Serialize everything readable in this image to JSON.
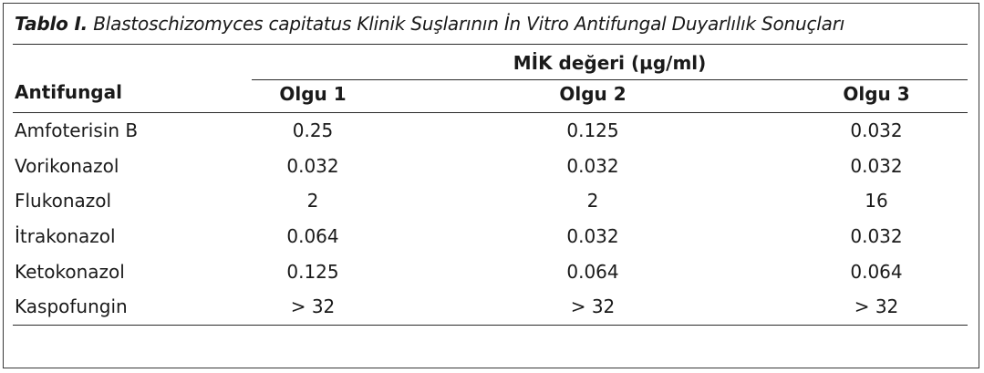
{
  "caption": {
    "label": "Tablo I.",
    "text": "Blastoschizomyces capitatus Klinik Suşlarının İn Vitro Antifungal Duyarlılık Sonuçları"
  },
  "table": {
    "span_header": "MİK değeri (µg/ml)",
    "columns": [
      "Antifungal",
      "Olgu 1",
      "Olgu 2",
      "Olgu 3"
    ],
    "rows": [
      [
        "Amfoterisin B",
        "0.25",
        "0.125",
        "0.032"
      ],
      [
        "Vorikonazol",
        "0.032",
        "0.032",
        "0.032"
      ],
      [
        "Flukonazol",
        "2",
        "2",
        "16"
      ],
      [
        "İtrakonazol",
        "0.064",
        "0.032",
        "0.032"
      ],
      [
        "Ketokonazol",
        "0.125",
        "0.064",
        "0.064"
      ],
      [
        "Kaspofungin",
        "> 32",
        "> 32",
        "> 32"
      ]
    ]
  }
}
